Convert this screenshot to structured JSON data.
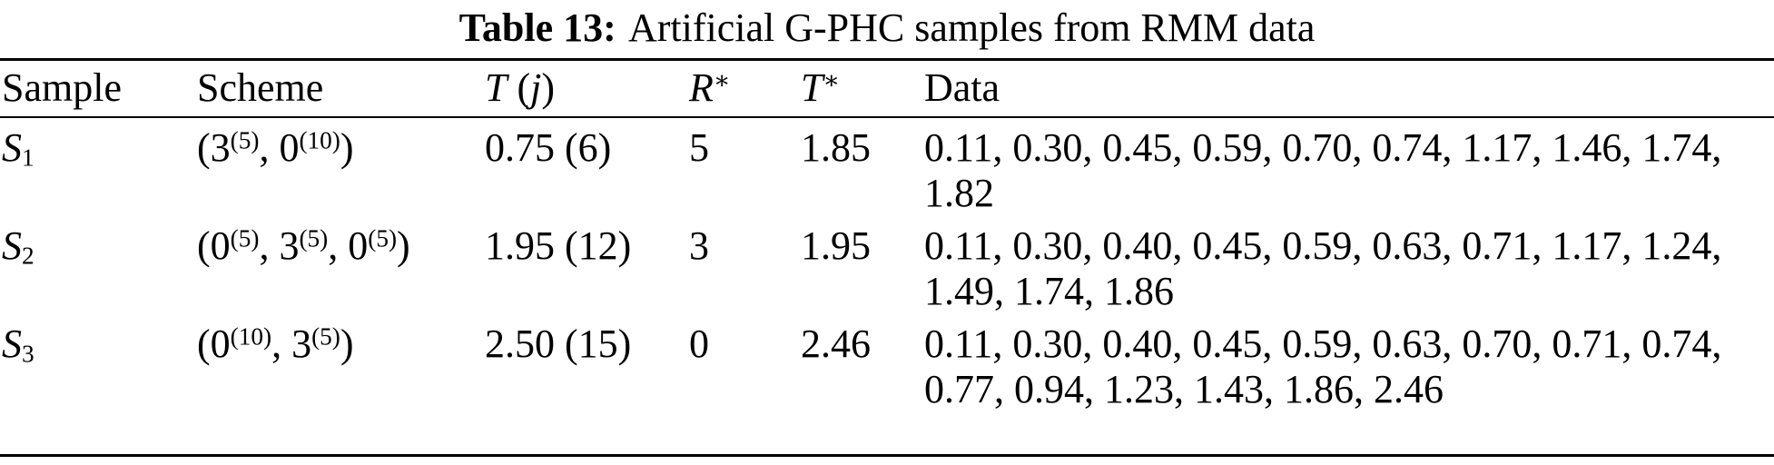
{
  "caption": {
    "label": "Table 13:",
    "text": "Artificial G-PHC samples from RMM data"
  },
  "headers": {
    "sample": [
      {
        "t": "Sample"
      }
    ],
    "scheme": [
      {
        "t": "Scheme"
      }
    ],
    "t_j": [
      {
        "t": "T",
        "i": true
      },
      {
        "t": " ("
      },
      {
        "t": "j",
        "i": true
      },
      {
        "t": ")"
      }
    ],
    "r_star": [
      {
        "t": "R",
        "i": true
      },
      {
        "t": "∗",
        "sup": true
      }
    ],
    "t_star": [
      {
        "t": "T",
        "i": true
      },
      {
        "t": "∗",
        "sup": true
      }
    ],
    "data": [
      {
        "t": "Data"
      }
    ]
  },
  "rows": [
    {
      "sample": [
        {
          "t": "S",
          "i": true
        },
        {
          "t": "1",
          "sub": true
        }
      ],
      "scheme": [
        {
          "t": "(3"
        },
        {
          "t": "(5)",
          "sup": true
        },
        {
          "t": ", 0"
        },
        {
          "t": "(10)",
          "sup": true
        },
        {
          "t": ")"
        }
      ],
      "t_j": "0.75 (6)",
      "r_star": "5",
      "t_star": "1.85",
      "data": "0.11, 0.30, 0.45, 0.59, 0.70, 0.74, 1.17, 1.46, 1.74, 1.82"
    },
    {
      "sample": [
        {
          "t": "S",
          "i": true
        },
        {
          "t": "2",
          "sub": true
        }
      ],
      "scheme": [
        {
          "t": "(0"
        },
        {
          "t": "(5)",
          "sup": true
        },
        {
          "t": ", 3"
        },
        {
          "t": "(5)",
          "sup": true
        },
        {
          "t": ", 0"
        },
        {
          "t": "(5)",
          "sup": true
        },
        {
          "t": ")"
        }
      ],
      "t_j": "1.95 (12)",
      "r_star": "3",
      "t_star": "1.95",
      "data": "0.11, 0.30, 0.40, 0.45, 0.59, 0.63, 0.71, 1.17, 1.24, 1.49, 1.74, 1.86"
    },
    {
      "sample": [
        {
          "t": "S",
          "i": true
        },
        {
          "t": "3",
          "sub": true
        }
      ],
      "scheme": [
        {
          "t": "(0"
        },
        {
          "t": "(10)",
          "sup": true
        },
        {
          "t": ", 3"
        },
        {
          "t": "(5)",
          "sup": true
        },
        {
          "t": ")"
        }
      ],
      "t_j": "2.50 (15)",
      "r_star": "0",
      "t_star": "2.46",
      "data": "0.11, 0.30, 0.40, 0.45, 0.59, 0.63, 0.70, 0.71, 0.74, 0.77, 0.94, 1.23, 1.43, 1.86, 2.46"
    }
  ]
}
